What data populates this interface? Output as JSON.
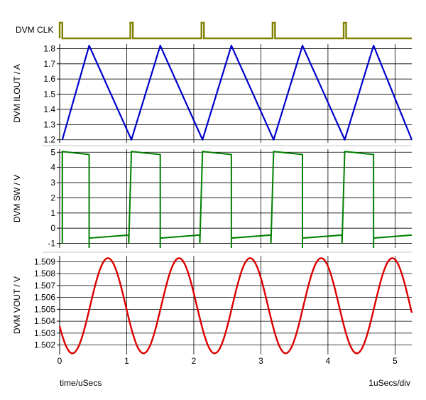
{
  "chart_data": [
    {
      "type": "line",
      "ylabel": "DVM CLK",
      "color": "#808000",
      "xlim": [
        0,
        5.25
      ],
      "pulses_x": [
        1.07,
        2.13,
        3.19,
        4.25
      ],
      "baseline": 0,
      "high_at_start_x": 0.04
    },
    {
      "type": "line",
      "ylabel": "DVM ILOUT / A",
      "color": "#0000cc",
      "xlim": [
        0,
        5.25
      ],
      "ylim": [
        1.18,
        1.83
      ],
      "yticks": [
        "1.2",
        "1.3",
        "1.4",
        "1.5",
        "1.6",
        "1.7",
        "1.8"
      ],
      "series": [
        {
          "x": [
            0.04,
            0.44,
            1.07,
            1.5,
            2.13,
            2.56,
            3.19,
            3.62,
            4.25,
            4.68,
            5.25
          ],
          "y": [
            1.2,
            1.82,
            1.2,
            1.82,
            1.2,
            1.82,
            1.2,
            1.82,
            1.2,
            1.82,
            1.2
          ]
        }
      ]
    },
    {
      "type": "line",
      "ylabel": "DVM SW / V",
      "color": "#008000",
      "xlim": [
        0,
        5.25
      ],
      "ylim": [
        -1.3,
        5.2
      ],
      "yticks": [
        "-1",
        "0",
        "1",
        "2",
        "3",
        "4",
        "5"
      ],
      "series": [
        {
          "x": [
            0.04,
            0.04,
            0.44,
            0.44,
            0.44,
            1.03,
            1.03,
            1.07,
            1.5,
            1.5,
            1.5,
            2.09,
            2.09,
            2.13,
            2.56,
            2.56,
            2.56,
            3.15,
            3.15,
            3.19,
            3.62,
            3.62,
            3.62,
            4.21,
            4.21,
            4.25,
            4.68,
            4.68,
            4.68,
            5.25
          ],
          "y": [
            -1.0,
            5.05,
            4.85,
            -1.3,
            -0.65,
            -0.45,
            -1.0,
            5.05,
            4.85,
            -1.3,
            -0.65,
            -0.45,
            -1.0,
            5.05,
            4.85,
            -1.3,
            -0.65,
            -0.45,
            -1.0,
            5.05,
            4.85,
            -1.3,
            -0.65,
            -0.45,
            -1.0,
            5.05,
            4.85,
            -1.3,
            -0.65,
            -0.45
          ]
        }
      ]
    },
    {
      "type": "line",
      "ylabel": "DVM VOUT / V",
      "color": "#dd0000",
      "xlim": [
        0,
        5.25
      ],
      "ylim": [
        1.5012,
        1.5095
      ],
      "yticks": [
        "1.502",
        "1.503",
        "1.504",
        "1.505",
        "1.506",
        "1.507",
        "1.508",
        "1.509"
      ],
      "series": [
        {
          "model": "sine",
          "offset": 1.5053,
          "amplitude": 0.004,
          "period": 1.06,
          "peak_at": 0.72
        }
      ]
    }
  ],
  "x_axis": {
    "ticks": [
      "0",
      "1",
      "2",
      "3",
      "4",
      "5"
    ],
    "label": "time/uSecs",
    "scale_label": "1uSecs/div"
  }
}
